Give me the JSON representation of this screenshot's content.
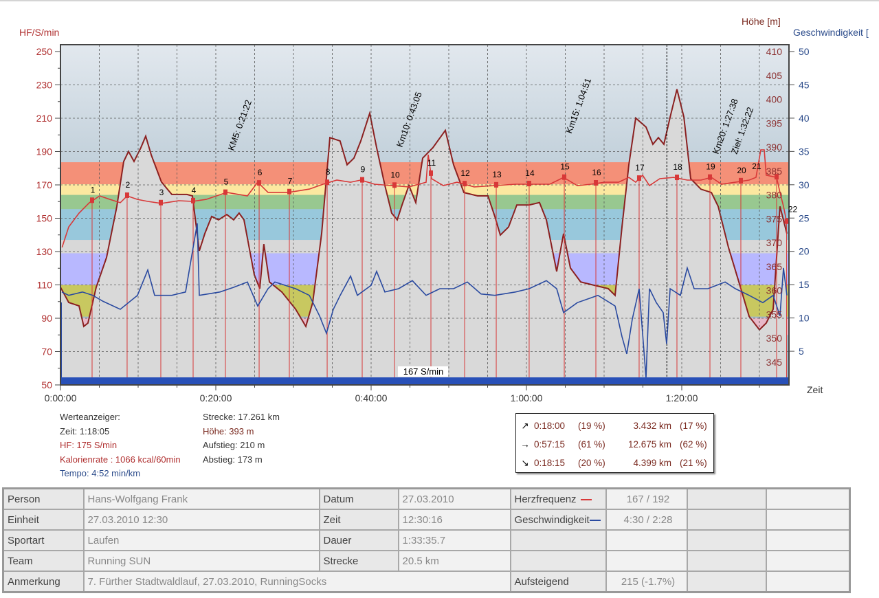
{
  "chart_data": {
    "type": "line",
    "y_left_label": "HF/S/min",
    "y_right_label_1": "Höhe [m]",
    "y_right_label_2": "Geschwindigkeit [",
    "x_label": "Zeit",
    "x_ticks": [
      "0:00:00",
      "0:20:00",
      "0:40:00",
      "1:00:00",
      "1:20:00"
    ],
    "x_tick_minutes": [
      0,
      20,
      40,
      60,
      80
    ],
    "xlim_minutes": [
      0,
      94
    ],
    "hf_ylim": [
      50,
      250
    ],
    "hf_ticks": [
      250,
      230,
      210,
      190,
      170,
      150,
      130,
      110,
      90,
      70,
      50
    ],
    "elev_ylim": [
      345,
      410
    ],
    "elev_ticks": [
      410,
      405,
      400,
      395,
      390,
      385,
      380,
      375,
      370,
      365,
      360,
      355,
      350,
      345
    ],
    "speed_ylim": [
      0,
      50
    ],
    "speed_ticks": [
      50,
      45,
      40,
      35,
      30,
      25,
      20,
      15,
      10,
      5
    ],
    "hf_zones": [
      {
        "from": 80,
        "to": 90,
        "color": "#e8b8c8"
      },
      {
        "from": 91,
        "to": 110,
        "color": "#c8c860"
      },
      {
        "from": 110,
        "to": 129,
        "color": "#b8b8ff"
      },
      {
        "from": 129,
        "to": 137,
        "color": "#d8d8d8"
      },
      {
        "from": 137,
        "to": 155.5,
        "color": "#98c8dc"
      },
      {
        "from": 155.5,
        "to": 164,
        "color": "#98c890"
      },
      {
        "from": 164,
        "to": 170.4,
        "color": "#fce8a0"
      },
      {
        "from": 170.4,
        "to": 183.6,
        "color": "#f49078"
      }
    ],
    "elevation": [
      [
        0,
        360.7
      ],
      [
        1.06,
        357.5
      ],
      [
        2.39,
        356.8
      ],
      [
        3.0,
        352.5
      ],
      [
        3.54,
        353.2
      ],
      [
        4.6,
        360.7
      ],
      [
        5.93,
        366.9
      ],
      [
        7.26,
        377.6
      ],
      [
        8.14,
        387
      ],
      [
        8.76,
        389.1
      ],
      [
        9.47,
        387
      ],
      [
        10.35,
        389.9
      ],
      [
        10.97,
        392.3
      ],
      [
        11.68,
        388.4
      ],
      [
        13.0,
        382.7
      ],
      [
        14.34,
        380.1
      ],
      [
        15.4,
        380.1
      ],
      [
        16.28,
        380.1
      ],
      [
        16.99,
        379.8
      ],
      [
        17.88,
        368.3
      ],
      [
        18.58,
        371.9
      ],
      [
        19.47,
        375.5
      ],
      [
        20.35,
        374.8
      ],
      [
        21.42,
        375.9
      ],
      [
        22.3,
        374.8
      ],
      [
        23.0,
        376.2
      ],
      [
        23.63,
        374.8
      ],
      [
        24.96,
        363.3
      ],
      [
        25.66,
        360.4
      ],
      [
        26.19,
        369.7
      ],
      [
        26.9,
        361.8
      ],
      [
        28.5,
        359.7
      ],
      [
        30.27,
        356.1
      ],
      [
        31.59,
        352.5
      ],
      [
        32.48,
        357.5
      ],
      [
        33.63,
        371.9
      ],
      [
        34.69,
        392
      ],
      [
        36.0,
        391.3
      ],
      [
        36.9,
        386.3
      ],
      [
        37.79,
        387.7
      ],
      [
        38.67,
        391.3
      ],
      [
        39.82,
        397.1
      ],
      [
        40.71,
        389.9
      ],
      [
        41.77,
        382
      ],
      [
        42.65,
        376.2
      ],
      [
        43.36,
        374.8
      ],
      [
        43.98,
        377.9
      ],
      [
        44.87,
        382
      ],
      [
        45.75,
        378.4
      ],
      [
        46.64,
        387.7
      ],
      [
        47.96,
        389.9
      ],
      [
        49.56,
        393.5
      ],
      [
        50.62,
        386.3
      ],
      [
        51.95,
        380.5
      ],
      [
        53.72,
        379.8
      ],
      [
        55.04,
        379.8
      ],
      [
        55.93,
        375.5
      ],
      [
        56.64,
        371.6
      ],
      [
        57.7,
        373.3
      ],
      [
        58.76,
        377.9
      ],
      [
        60.35,
        377.9
      ],
      [
        61.68,
        378.4
      ],
      [
        62.57,
        374.8
      ],
      [
        63.89,
        364
      ],
      [
        64.78,
        371.9
      ],
      [
        65.66,
        364.7
      ],
      [
        66.99,
        361.8
      ],
      [
        68.76,
        361.1
      ],
      [
        70.53,
        360.4
      ],
      [
        71.42,
        359
      ],
      [
        72.3,
        373.3
      ],
      [
        73.19,
        386.3
      ],
      [
        74.07,
        396.1
      ],
      [
        75.4,
        394.2
      ],
      [
        76.28,
        390.6
      ],
      [
        76.99,
        392
      ],
      [
        77.7,
        390.6
      ],
      [
        78.5,
        396.3
      ],
      [
        79.38,
        402.1
      ],
      [
        80.27,
        396.3
      ],
      [
        81.15,
        383.4
      ],
      [
        82.48,
        381.2
      ],
      [
        83.81,
        380.5
      ],
      [
        84.69,
        377.6
      ],
      [
        86.02,
        369
      ],
      [
        87.35,
        361.8
      ],
      [
        88.67,
        354.6
      ],
      [
        90.0,
        351.8
      ],
      [
        90.88,
        353.2
      ],
      [
        91.77,
        356.1
      ],
      [
        92.65,
        377.6
      ],
      [
        93.54,
        371.9
      ]
    ],
    "heart_rate": [
      [
        0.2,
        132.5
      ],
      [
        1.06,
        144.8
      ],
      [
        2.39,
        153.1
      ],
      [
        3.72,
        159.3
      ],
      [
        5.04,
        163.4
      ],
      [
        6.37,
        161.3
      ],
      [
        7.7,
        159.3
      ],
      [
        8.58,
        163.4
      ],
      [
        9.91,
        161.3
      ],
      [
        11.24,
        160.1
      ],
      [
        13.0,
        158.9
      ],
      [
        15.22,
        160.5
      ],
      [
        16.99,
        160.1
      ],
      [
        18.76,
        161.3
      ],
      [
        21.42,
        165.5
      ],
      [
        24.07,
        163.4
      ],
      [
        25.4,
        171.6
      ],
      [
        26.73,
        165.5
      ],
      [
        29.38,
        165.5
      ],
      [
        32.04,
        167.5
      ],
      [
        33.81,
        170.4
      ],
      [
        35.58,
        172.9
      ],
      [
        37.35,
        171.6
      ],
      [
        38.67,
        172.9
      ],
      [
        40.44,
        170.4
      ],
      [
        42.65,
        169.6
      ],
      [
        44.87,
        168.8
      ],
      [
        47.08,
        171.6
      ],
      [
        47.35,
        188.1
      ],
      [
        47.79,
        173.7
      ],
      [
        49.29,
        169.6
      ],
      [
        51.06,
        171.6
      ],
      [
        53.27,
        168.8
      ],
      [
        55.93,
        169.6
      ],
      [
        58.58,
        170.4
      ],
      [
        61.24,
        170.4
      ],
      [
        63.01,
        170.4
      ],
      [
        64.78,
        174.5
      ],
      [
        66.55,
        169.6
      ],
      [
        68.32,
        170.4
      ],
      [
        70.09,
        171.6
      ],
      [
        71.86,
        171.6
      ],
      [
        73.19,
        174.5
      ],
      [
        74.07,
        171.6
      ],
      [
        74.96,
        175.8
      ],
      [
        75.84,
        169.6
      ],
      [
        77.17,
        173.7
      ],
      [
        78.94,
        174.5
      ],
      [
        80.71,
        172.9
      ],
      [
        82.48,
        172.9
      ],
      [
        83.81,
        174.5
      ],
      [
        85.13,
        170.4
      ],
      [
        86.9,
        171.6
      ],
      [
        88.67,
        172.9
      ],
      [
        89.56,
        174.5
      ],
      [
        90.18,
        191
      ],
      [
        90.62,
        191
      ],
      [
        90.88,
        175.8
      ],
      [
        92.21,
        174.5
      ],
      [
        92.65,
        165.5
      ],
      [
        93.1,
        157.2
      ],
      [
        93.54,
        146.9
      ]
    ],
    "speed": [
      [
        0.18,
        13.9
      ],
      [
        1.06,
        13.4
      ],
      [
        2.83,
        13.9
      ],
      [
        4.16,
        13.4
      ],
      [
        5.49,
        12.5
      ],
      [
        7.7,
        11.3
      ],
      [
        9.91,
        13.4
      ],
      [
        11.24,
        17.2
      ],
      [
        12.12,
        13.4
      ],
      [
        14.34,
        13.4
      ],
      [
        16.11,
        13.9
      ],
      [
        17.61,
        24.2
      ],
      [
        17.88,
        13.4
      ],
      [
        20.53,
        13.9
      ],
      [
        22.3,
        14.6
      ],
      [
        24.07,
        15.4
      ],
      [
        25.4,
        11.8
      ],
      [
        26.73,
        14.4
      ],
      [
        27.61,
        15.4
      ],
      [
        30.27,
        14.4
      ],
      [
        32.04,
        13.4
      ],
      [
        33.36,
        10.3
      ],
      [
        34.25,
        7.7
      ],
      [
        35.13,
        11.3
      ],
      [
        36.02,
        13.4
      ],
      [
        37.35,
        16.3
      ],
      [
        38.23,
        13.4
      ],
      [
        40.0,
        14.9
      ],
      [
        40.71,
        17.0
      ],
      [
        41.77,
        13.9
      ],
      [
        43.54,
        14.4
      ],
      [
        45.31,
        15.6
      ],
      [
        47.08,
        13.4
      ],
      [
        48.85,
        14.4
      ],
      [
        50.62,
        14.4
      ],
      [
        52.39,
        15.4
      ],
      [
        54.16,
        13.6
      ],
      [
        55.93,
        13.4
      ],
      [
        58.58,
        13.9
      ],
      [
        60.35,
        14.4
      ],
      [
        62.57,
        15.6
      ],
      [
        63.89,
        14.4
      ],
      [
        64.78,
        10.8
      ],
      [
        66.55,
        12.3
      ],
      [
        69.2,
        13.4
      ],
      [
        71.42,
        11.8
      ],
      [
        72.3,
        7.2
      ],
      [
        72.92,
        4.6
      ],
      [
        73.63,
        9.8
      ],
      [
        74.51,
        14.4
      ],
      [
        75.4,
        1.0
      ],
      [
        75.84,
        14.4
      ],
      [
        76.73,
        12.3
      ],
      [
        77.61,
        10.8
      ],
      [
        78.05,
        6.1
      ],
      [
        78.5,
        14.4
      ],
      [
        79.82,
        13.4
      ],
      [
        80.71,
        17.5
      ],
      [
        81.59,
        14.4
      ],
      [
        83.36,
        14.4
      ],
      [
        85.58,
        15.4
      ],
      [
        86.9,
        14.4
      ],
      [
        88.67,
        13.4
      ],
      [
        90.44,
        12.3
      ],
      [
        91.77,
        13.4
      ],
      [
        92.65,
        10.3
      ],
      [
        93.1,
        17.5
      ],
      [
        93.54,
        13.4
      ]
    ],
    "laps": [
      {
        "label": "1",
        "t": 4.07
      },
      {
        "label": "2",
        "t": 8.58
      },
      {
        "label": "3",
        "t": 12.92
      },
      {
        "label": "4",
        "t": 17.08
      },
      {
        "label": "5",
        "t": 21.24
      },
      {
        "label": "6",
        "t": 25.58
      },
      {
        "label": "7",
        "t": 29.47
      },
      {
        "label": "8",
        "t": 34.34
      },
      {
        "label": "9",
        "t": 38.85
      },
      {
        "label": "10",
        "t": 43.01
      },
      {
        "label": "11",
        "t": 47.7
      },
      {
        "label": "12",
        "t": 52.04
      },
      {
        "label": "13",
        "t": 56.11
      },
      {
        "label": "14",
        "t": 60.35
      },
      {
        "label": "15",
        "t": 64.87
      },
      {
        "label": "16",
        "t": 68.94
      },
      {
        "label": "17",
        "t": 74.51
      },
      {
        "label": "18",
        "t": 79.38
      },
      {
        "label": "19",
        "t": 83.63
      },
      {
        "label": "20",
        "t": 87.61
      },
      {
        "label": "21",
        "t": 92.21
      },
      {
        "label": "22",
        "t": 93.5
      }
    ],
    "km_annotations": [
      {
        "text": "KM5: 0:21:22",
        "t": 21.4
      },
      {
        "text": "Km10: 0:43:05",
        "t": 43.1
      },
      {
        "text": "Km15: 1:04:51",
        "t": 64.9
      },
      {
        "text": "Km20: 1:27:38",
        "t": 87.6
      },
      {
        "text": "Ziel: 1:32:22",
        "t": 92.4
      }
    ],
    "cursor_minutes": 78.08,
    "avg_hf_label": "167 S/min",
    "colors": {
      "hf": "#d83838",
      "elevation": "#8b2020",
      "speed": "#2a4aa0",
      "elev_fill": "#d9d9d9",
      "avg_bar": "#2850b8"
    }
  },
  "readout": {
    "title": "Werteanzeiger:",
    "zeit": "Zeit: 1:18:05",
    "hf": "HF: 175 S/min",
    "kalorien": "Kalorienrate : 1066 kcal/60min",
    "tempo": "Tempo: 4:52 min/km",
    "strecke": "Strecke: 17.261 km",
    "hoehe": "Höhe: 393 m",
    "aufstieg": "Aufstieg: 210 m",
    "abstieg": "Abstieg: 173 m"
  },
  "summary": [
    {
      "arrow": "↗",
      "time": "0:18:00",
      "tpct": "(19 %)",
      "dist": "3.432 km",
      "dpct": "(17 %)"
    },
    {
      "arrow": "→",
      "time": "0:57:15",
      "tpct": "(61 %)",
      "dist": "12.675 km",
      "dpct": "(62 %)"
    },
    {
      "arrow": "↘",
      "time": "0:18:15",
      "tpct": "(20 %)",
      "dist": "4.399 km",
      "dpct": "(21 %)"
    }
  ],
  "table": {
    "person_label": "Person",
    "person": "Hans-Wolfgang Frank",
    "einheit_label": "Einheit",
    "einheit": "27.03.2010 12:30",
    "sportart_label": "Sportart",
    "sportart": "Laufen",
    "team_label": "Team",
    "team": "Running SUN",
    "anmerkung_label": "Anmerkung",
    "anmerkung": "7. Fürther Stadtwaldlauf, 27.03.2010, RunningSocks",
    "datum_label": "Datum",
    "datum": "27.03.2010",
    "zeit_label": "Zeit",
    "zeit": "12:30:16",
    "dauer_label": "Dauer",
    "dauer": "1:33:35.7",
    "strecke_label": "Strecke",
    "strecke": "20.5 km",
    "hf_label": "Herzfrequenz",
    "hf": "167 / 192",
    "geschw_label": "Geschwindigkeit",
    "geschw": "4:30 / 2:28",
    "aufsteigend_label": "Aufsteigend",
    "aufsteigend": "215 (-1.7%)"
  }
}
